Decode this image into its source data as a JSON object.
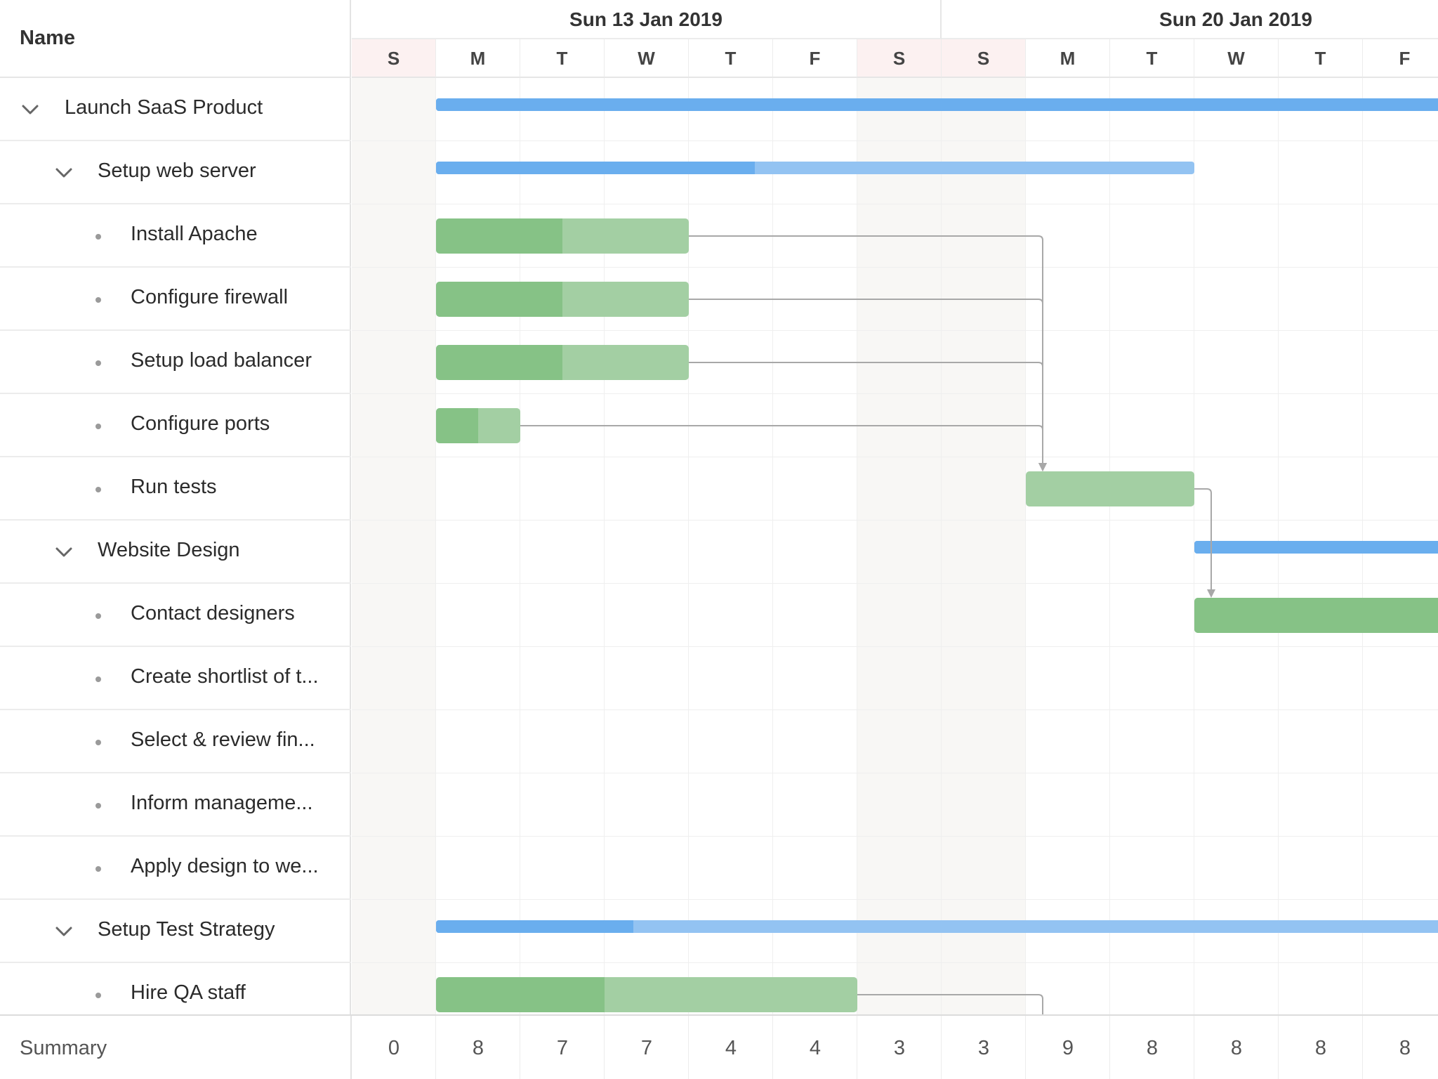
{
  "grid": {
    "header": {
      "name_label": "Name"
    },
    "rows": [
      {
        "label": "Launch SaaS Product",
        "level": 0,
        "expandable": true
      },
      {
        "label": "Setup web server",
        "level": 1,
        "expandable": true
      },
      {
        "label": "Install Apache",
        "level": 2,
        "expandable": false
      },
      {
        "label": "Configure firewall",
        "level": 2,
        "expandable": false
      },
      {
        "label": "Setup load balancer",
        "level": 2,
        "expandable": false
      },
      {
        "label": "Configure ports",
        "level": 2,
        "expandable": false
      },
      {
        "label": "Run tests",
        "level": 2,
        "expandable": false
      },
      {
        "label": "Website Design",
        "level": 1,
        "expandable": true
      },
      {
        "label": "Contact designers",
        "level": 2,
        "expandable": false
      },
      {
        "label": "Create shortlist of t...",
        "level": 2,
        "expandable": false
      },
      {
        "label": "Select & review fin...",
        "level": 2,
        "expandable": false
      },
      {
        "label": "Inform manageme...",
        "level": 2,
        "expandable": false
      },
      {
        "label": "Apply design to we...",
        "level": 2,
        "expandable": false
      },
      {
        "label": "Setup Test Strategy",
        "level": 1,
        "expandable": true
      },
      {
        "label": "Hire QA staff",
        "level": 2,
        "expandable": false
      }
    ]
  },
  "timeline": {
    "weeks": [
      {
        "label": "Sun 13 Jan 2019"
      },
      {
        "label": "Sun 20 Jan 2019"
      }
    ],
    "days": [
      "S",
      "M",
      "T",
      "W",
      "T",
      "F",
      "S",
      "S",
      "M",
      "T",
      "W",
      "T",
      "F"
    ],
    "weekend_days": [
      0,
      6,
      7
    ],
    "bars": [
      {
        "row": 0,
        "type": "parent",
        "start_day": 1,
        "end_day": 14,
        "percent_done": 100
      },
      {
        "row": 1,
        "type": "parent",
        "start_day": 1,
        "end_day": 10,
        "percent_done": 42
      },
      {
        "row": 2,
        "type": "task",
        "start_day": 1,
        "end_day": 4,
        "percent_done": 50
      },
      {
        "row": 3,
        "type": "task",
        "start_day": 1,
        "end_day": 4,
        "percent_done": 50
      },
      {
        "row": 4,
        "type": "task",
        "start_day": 1,
        "end_day": 4,
        "percent_done": 50
      },
      {
        "row": 5,
        "type": "task",
        "start_day": 1,
        "end_day": 2,
        "percent_done": 50
      },
      {
        "row": 6,
        "type": "task",
        "start_day": 8,
        "end_day": 10,
        "percent_done": 0
      },
      {
        "row": 7,
        "type": "parent",
        "start_day": 10,
        "end_day": 14,
        "percent_done": 100
      },
      {
        "row": 8,
        "type": "task",
        "start_day": 10,
        "end_day": 14,
        "percent_done": 100
      },
      {
        "row": 13,
        "type": "parent",
        "start_day": 1,
        "end_day": 14,
        "percent_done": 18
      },
      {
        "row": 14,
        "type": "task",
        "start_day": 1,
        "end_day": 6,
        "percent_done": 40
      }
    ],
    "dependencies": [
      {
        "from_row": 2,
        "to_row": 6
      },
      {
        "from_row": 3,
        "to_row": 6
      },
      {
        "from_row": 4,
        "to_row": 6
      },
      {
        "from_row": 5,
        "to_row": 6
      },
      {
        "from_row": 6,
        "to_row": 8
      },
      {
        "from_row": 14,
        "to_row": 15
      }
    ]
  },
  "summary": {
    "label": "Summary",
    "values": [
      "0",
      "8",
      "7",
      "7",
      "4",
      "4",
      "3",
      "3",
      "9",
      "8",
      "8",
      "8",
      "8"
    ]
  },
  "colors": {
    "task_done": "#86c286",
    "task_remaining": "#a3cfa3",
    "parent_done": "#6aaeee",
    "parent_remaining": "#93c3f2",
    "weekend_header": "#fcf1f1",
    "weekend_column": "#f8f7f5",
    "dependency_line": "#a8a8a8"
  },
  "icons": {
    "expand": "chevron-down-icon",
    "leaf": "bullet-icon",
    "dependency": "arrow-down-icon"
  }
}
